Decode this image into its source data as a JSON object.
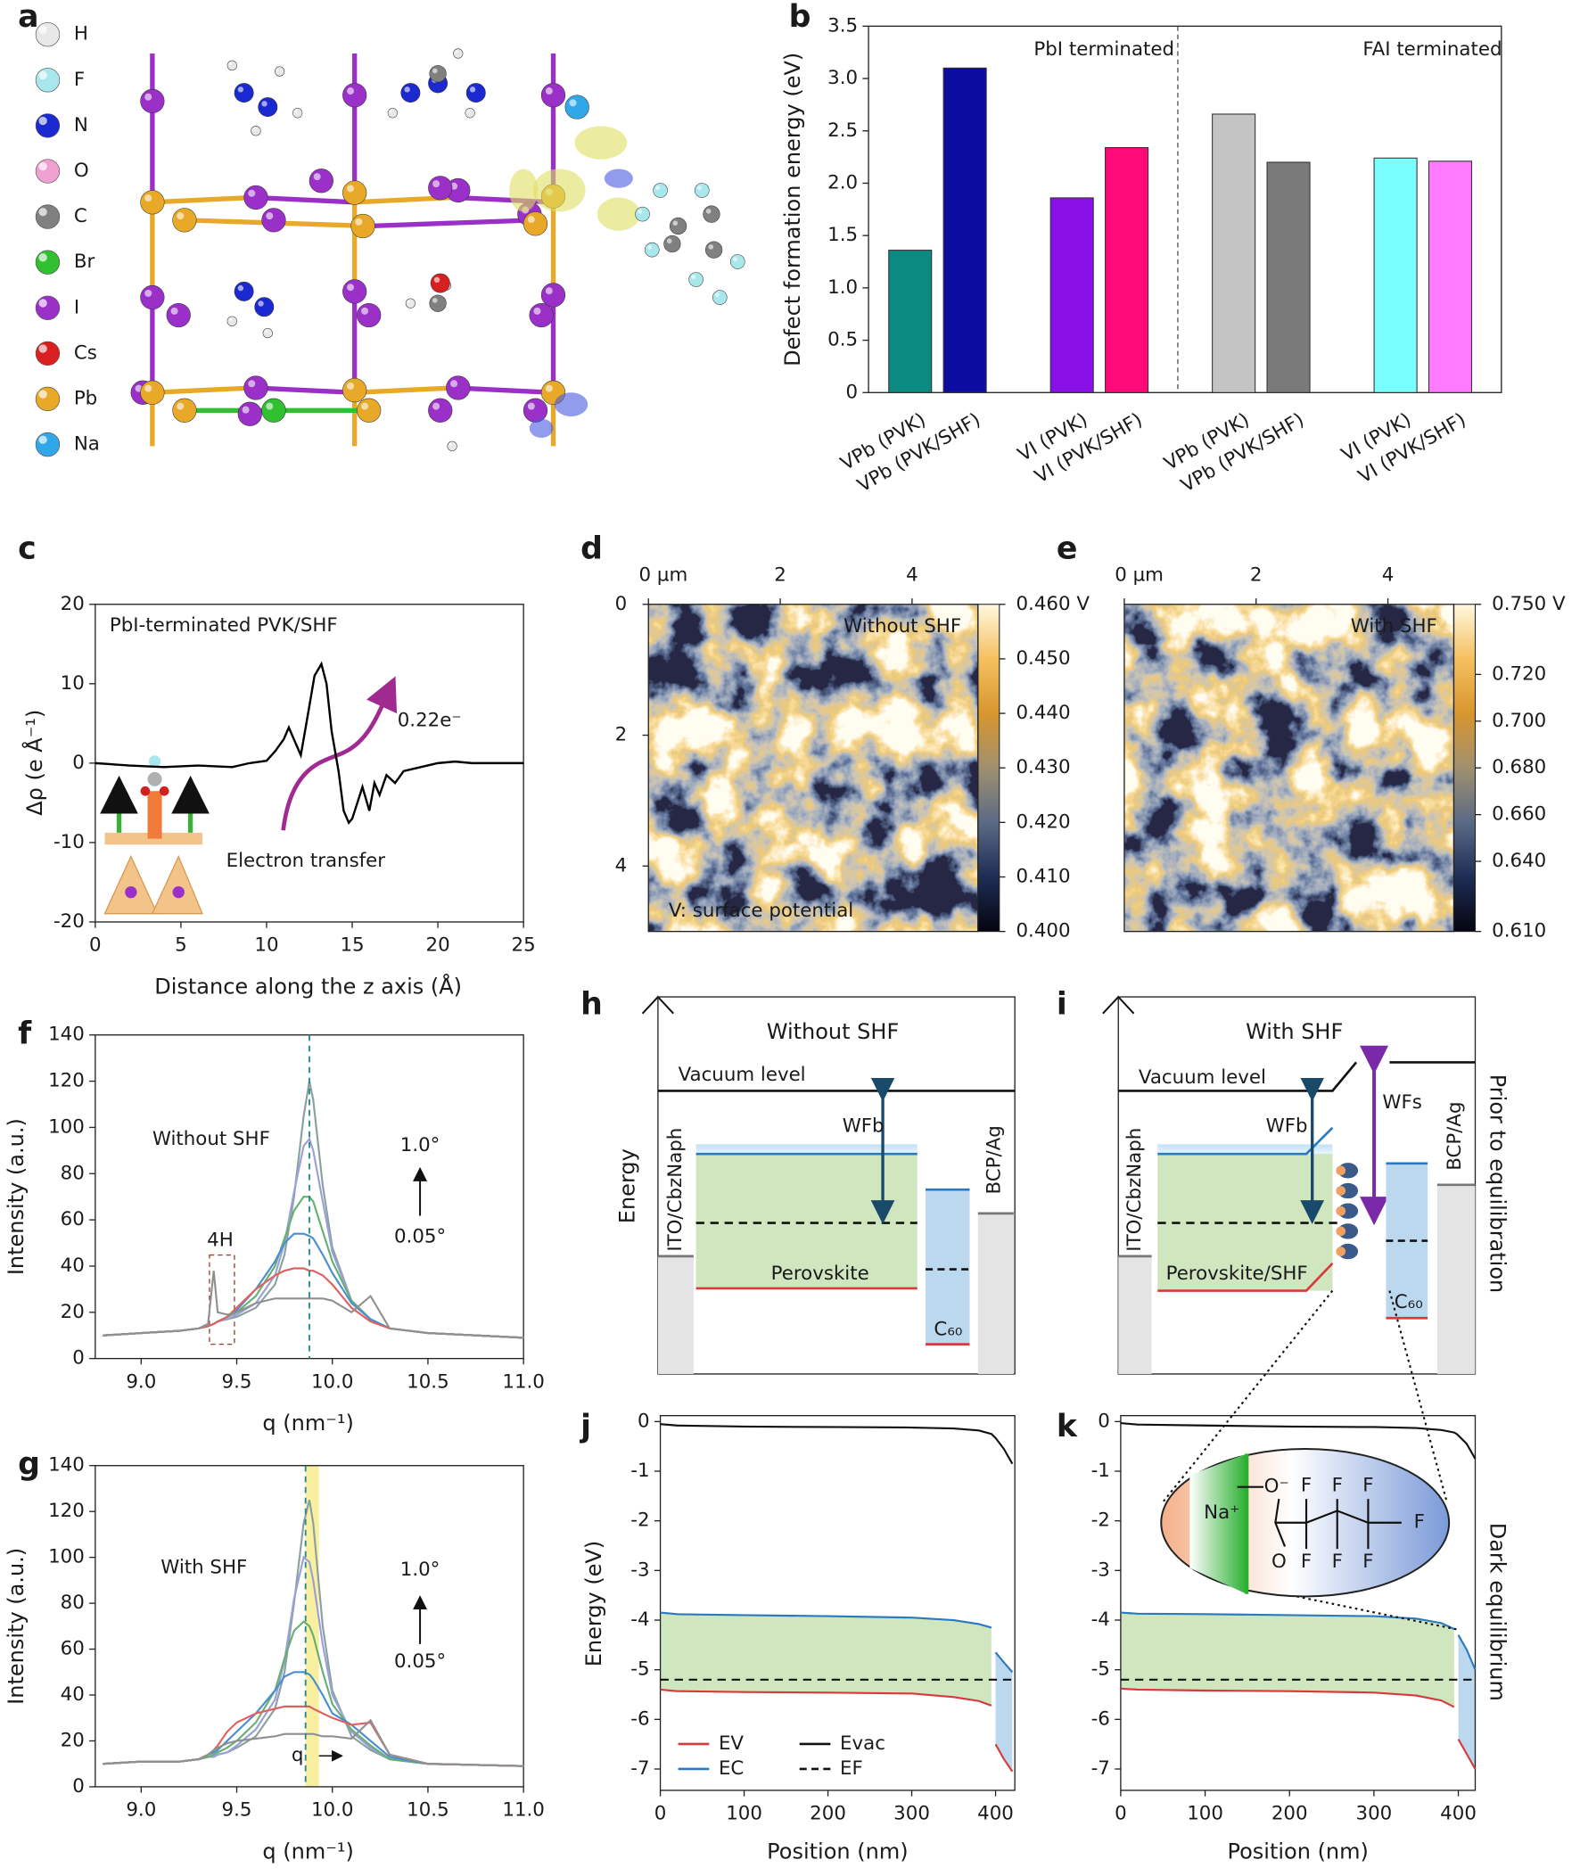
{
  "structure": {
    "label": "a",
    "legend": [
      {
        "label": "H",
        "color": "#e8e8e8"
      },
      {
        "label": "F",
        "color": "#a8e8ec"
      },
      {
        "label": "N",
        "color": "#1a2ad0"
      },
      {
        "label": "O",
        "color": "#f0a0d0"
      },
      {
        "label": "C",
        "color": "#808080"
      },
      {
        "label": "Br",
        "color": "#30c030"
      },
      {
        "label": "I",
        "color": "#9a30c8"
      },
      {
        "label": "Cs",
        "color": "#d82020"
      },
      {
        "label": "Pb",
        "color": "#e8a828"
      },
      {
        "label": "Na",
        "color": "#30a8e8"
      }
    ]
  },
  "chart_data": [
    {
      "type": "bar",
      "label": "b",
      "y_label": "Defect formation energy (eV)",
      "categories": [
        "VPb (PVK)",
        "VPb (PVK/SHF)",
        "VI (PVK)",
        "VI (PVK/SHF)",
        "VPb (PVK)",
        "VPb (PVK/SHF)",
        "VI (PVK)",
        "VI (PVK/SHF)"
      ],
      "values": [
        1.36,
        3.1,
        1.86,
        2.34,
        2.66,
        2.2,
        2.24,
        2.21
      ],
      "colors": [
        "#0a8a80",
        "#0c0ca0",
        "#8a10e8",
        "#ff0a78",
        "#c4c4c4",
        "#7a7a7a",
        "#7affff",
        "#ff7aff"
      ],
      "annotations": [
        "PbI terminated",
        "FAI terminated"
      ],
      "ylim": [
        0,
        3.5
      ],
      "yticks": [
        0,
        0.5,
        {
          "value": 1,
          "label": "1.0"
        },
        1.5,
        {
          "value": 2,
          "label": "2.0"
        },
        2.5,
        {
          "value": 3,
          "label": "3.0"
        },
        3.5
      ]
    },
    {
      "type": "line",
      "label": "c",
      "x_label": "Distance along the z axis (Å)",
      "y_label": "Δρ (e Å⁻¹)",
      "annotations": [
        "PbI-terminated PVK/SHF",
        "0.22e⁻",
        "Electron transfer"
      ],
      "x": [
        0,
        2,
        4,
        6,
        8,
        9,
        10,
        10.5,
        11,
        11.3,
        11.6,
        12,
        12.4,
        12.8,
        13.2,
        13.5,
        13.8,
        14.2,
        14.5,
        14.8,
        15,
        15.3,
        15.6,
        16,
        16.3,
        16.6,
        17,
        17.5,
        18,
        19,
        20,
        21,
        22,
        23,
        25
      ],
      "values": [
        0,
        -0.3,
        -0.5,
        -0.3,
        -0.5,
        0,
        0.3,
        1.5,
        3,
        4.5,
        3,
        1,
        6,
        11,
        12.5,
        10,
        4,
        -1,
        -6,
        -7.5,
        -7,
        -5,
        -3,
        -6,
        -2.5,
        -4,
        -1.5,
        -2.5,
        -1,
        -0.5,
        0,
        0.2,
        0,
        0,
        0
      ],
      "color": "#000000",
      "xlim": [
        0,
        25
      ],
      "xticks": [
        0,
        5,
        10,
        15,
        20,
        25
      ],
      "ylim": [
        -20,
        20
      ],
      "yticks": [
        -20,
        -10,
        0,
        10,
        20
      ]
    },
    {
      "type": "heatmap",
      "label": "d",
      "annotations": [
        "Without SHF",
        "V: surface potential"
      ],
      "xlim": [
        0,
        5
      ],
      "xticks": [
        {
          "value": 0,
          "label": "0 µm"
        },
        2,
        4
      ],
      "ylim": [
        0,
        5
      ],
      "yticks": [
        0,
        2,
        4
      ],
      "yaxis_inverted": true,
      "colormap": [
        "#05050f",
        "#1e2d55",
        "#5a6a85",
        "#a09070",
        "#d8962e",
        "#f5c060",
        "#fff8e0"
      ],
      "colorbar": {
        "lim": [
          0.4,
          0.46
        ],
        "ticks": [
          {
            "value": 0.46,
            "label": "0.460 V"
          },
          {
            "value": 0.45,
            "label": "0.450"
          },
          {
            "value": 0.44,
            "label": "0.440"
          },
          {
            "value": 0.43,
            "label": "0.430"
          },
          {
            "value": 0.42,
            "label": "0.420"
          },
          {
            "value": 0.41,
            "label": "0.410"
          },
          {
            "value": 0.4,
            "label": "0.400"
          }
        ]
      }
    },
    {
      "type": "heatmap",
      "label": "e",
      "annotations": [
        "With SHF"
      ],
      "xlim": [
        0,
        5
      ],
      "xticks": [
        {
          "value": 0,
          "label": "0 µm"
        },
        2,
        4
      ],
      "ylim": [
        0,
        5
      ],
      "yticks": [],
      "yaxis_inverted": true,
      "colormap": [
        "#05050f",
        "#1e2d55",
        "#5a6a85",
        "#a09070",
        "#d8962e",
        "#f5c060",
        "#fff8e0"
      ],
      "colorbar": {
        "lim": [
          0.61,
          0.75
        ],
        "ticks": [
          {
            "value": 0.75,
            "label": "0.750 V"
          },
          {
            "value": 0.72,
            "label": "0.720"
          },
          {
            "value": 0.7,
            "label": "0.700"
          },
          {
            "value": 0.68,
            "label": "0.680"
          },
          {
            "value": 0.66,
            "label": "0.660"
          },
          {
            "value": 0.64,
            "label": "0.640"
          },
          {
            "value": 0.61,
            "label": "0.610"
          }
        ]
      }
    },
    {
      "type": "line",
      "label": "f",
      "x_label": "q (nm⁻¹)",
      "y_label": "Intensity (a.u.)",
      "annotations": [
        "Without SHF",
        "1.0°",
        "0.05°",
        "4H"
      ],
      "vline": 9.88,
      "vline_color": "#2a8a8a",
      "x": [
        8.8,
        9.0,
        9.2,
        9.3,
        9.35,
        9.38,
        9.4,
        9.45,
        9.5,
        9.6,
        9.7,
        9.75,
        9.8,
        9.85,
        9.88,
        9.9,
        9.95,
        10.0,
        10.1,
        10.2,
        10.3,
        10.5,
        11.0
      ],
      "series": [
        {
          "color": "#8aa0a0",
          "values": [
            10,
            11,
            12,
            13,
            14,
            15,
            16,
            17,
            18,
            22,
            32,
            45,
            70,
            105,
            120,
            112,
            75,
            48,
            25,
            17,
            13,
            11,
            9
          ]
        },
        {
          "color": "#9aa0d8",
          "values": [
            10,
            11,
            12,
            13,
            14,
            15,
            16,
            17,
            19,
            24,
            36,
            50,
            72,
            92,
            95,
            90,
            68,
            46,
            25,
            17,
            13,
            11,
            9
          ]
        },
        {
          "color": "#66b070",
          "values": [
            10,
            11,
            12,
            13,
            14,
            15,
            16,
            18,
            20,
            27,
            40,
            52,
            64,
            70,
            70,
            68,
            55,
            42,
            25,
            17,
            13,
            11,
            9
          ]
        },
        {
          "color": "#4a8ed0",
          "values": [
            10,
            11,
            12,
            13,
            14,
            15,
            16,
            18,
            21,
            30,
            42,
            50,
            54,
            54,
            53,
            52,
            45,
            37,
            24,
            17,
            13,
            11,
            9
          ]
        },
        {
          "color": "#e06060",
          "values": [
            10,
            11,
            12,
            13,
            14,
            15,
            16,
            18,
            22,
            30,
            36,
            38,
            39,
            39,
            38,
            38,
            36,
            32,
            22,
            16,
            13,
            11,
            9
          ]
        },
        {
          "color": "#909090",
          "values": [
            10,
            11,
            12,
            13,
            15,
            38,
            20,
            19,
            20,
            24,
            26,
            26,
            26,
            26,
            26,
            26,
            26,
            25,
            20,
            27,
            13,
            11,
            9
          ]
        }
      ],
      "xlim": [
        8.76,
        11.0
      ],
      "xticks": [
        {
          "value": 9,
          "label": "9.0"
        },
        9.5,
        {
          "value": 10,
          "label": "10.0"
        },
        10.5,
        {
          "value": 11,
          "label": "11.0"
        }
      ],
      "ylim": [
        0,
        140
      ],
      "yticks": [
        0,
        20,
        40,
        60,
        80,
        100,
        120,
        140
      ]
    },
    {
      "type": "line",
      "label": "g",
      "x_label": "q (nm⁻¹)",
      "y_label": "Intensity (a.u.)",
      "annotations": [
        "With SHF",
        "1.0°",
        "0.05°",
        "q"
      ],
      "vline": 9.86,
      "vline_color": "#2a8a8a",
      "band": [
        9.86,
        9.93
      ],
      "band_color": "#f8f0a0",
      "x": [
        8.8,
        9.0,
        9.2,
        9.3,
        9.35,
        9.38,
        9.4,
        9.45,
        9.5,
        9.6,
        9.7,
        9.75,
        9.8,
        9.85,
        9.88,
        9.9,
        9.95,
        10.0,
        10.1,
        10.2,
        10.3,
        10.5,
        11.0
      ],
      "series": [
        {
          "color": "#8aa0a0",
          "values": [
            10,
            11,
            11,
            12,
            13,
            13,
            14,
            15,
            17,
            22,
            34,
            50,
            80,
            115,
            125,
            115,
            70,
            42,
            22,
            16,
            12,
            10,
            9
          ]
        },
        {
          "color": "#9aa0d8",
          "values": [
            10,
            11,
            11,
            12,
            13,
            13,
            14,
            15,
            18,
            25,
            38,
            55,
            82,
            100,
            98,
            90,
            62,
            40,
            24,
            17,
            12,
            10,
            9
          ]
        },
        {
          "color": "#66b070",
          "values": [
            10,
            11,
            11,
            12,
            13,
            14,
            15,
            17,
            20,
            28,
            42,
            56,
            68,
            72,
            70,
            66,
            50,
            36,
            25,
            18,
            12,
            10,
            9
          ]
        },
        {
          "color": "#4a8ed0",
          "values": [
            10,
            11,
            11,
            12,
            14,
            15,
            16,
            20,
            24,
            32,
            42,
            48,
            50,
            50,
            49,
            47,
            40,
            32,
            27,
            20,
            13,
            10,
            9
          ]
        },
        {
          "color": "#e06060",
          "values": [
            10,
            11,
            11,
            12,
            14,
            16,
            18,
            24,
            28,
            32,
            34,
            35,
            35,
            35,
            35,
            34,
            32,
            30,
            27,
            28,
            14,
            10,
            9
          ]
        },
        {
          "color": "#909090",
          "values": [
            10,
            11,
            11,
            12,
            14,
            16,
            17,
            19,
            20,
            21,
            22,
            23,
            23,
            23,
            23,
            23,
            22,
            22,
            21,
            29,
            14,
            10,
            9
          ]
        }
      ],
      "xlim": [
        8.76,
        11.0
      ],
      "xticks": [
        {
          "value": 9,
          "label": "9.0"
        },
        9.5,
        {
          "value": 10,
          "label": "10.0"
        },
        10.5,
        {
          "value": 11,
          "label": "11.0"
        }
      ],
      "ylim": [
        0,
        140
      ],
      "yticks": [
        0,
        20,
        40,
        60,
        80,
        100,
        120,
        140
      ]
    },
    {
      "type": "line",
      "label": "j",
      "x_label": "Position (nm)",
      "y_label": "Energy (eV)",
      "legend": true,
      "band_colors": [
        "#cfe6bf",
        "#bcd8ef"
      ],
      "x": [
        0,
        20,
        100,
        200,
        300,
        350,
        380,
        395,
        398,
        400,
        410,
        420
      ],
      "series": [
        {
          "name": "EV",
          "color": "#d83a3a",
          "values": [
            -5.4,
            -5.43,
            -5.45,
            -5.46,
            -5.48,
            -5.55,
            -5.63,
            -5.72,
            null,
            -6.5,
            -6.8,
            -7.05
          ]
        },
        {
          "name": "EC",
          "color": "#2a7ac0",
          "values": [
            -3.85,
            -3.88,
            -3.9,
            -3.92,
            -3.95,
            -4.0,
            -4.08,
            -4.15,
            null,
            -4.65,
            -4.85,
            -5.05
          ]
        },
        {
          "name": "Evac",
          "color": "#111111",
          "values": [
            -0.05,
            -0.08,
            -0.1,
            -0.11,
            -0.12,
            -0.14,
            -0.18,
            -0.25,
            -0.3,
            -0.33,
            -0.55,
            -0.85
          ]
        },
        {
          "name": "EF",
          "color": "#111111",
          "style": "dashed",
          "values": [
            -5.2,
            -5.2,
            -5.2,
            -5.2,
            -5.2,
            -5.2,
            -5.2,
            -5.2,
            -5.2,
            -5.2,
            -5.2,
            -5.2
          ]
        }
      ],
      "xlim": [
        0,
        423
      ],
      "xticks": [
        0,
        100,
        200,
        300,
        400
      ],
      "ylim": [
        -7.43,
        0.12
      ],
      "yticks": [
        0,
        -1,
        -2,
        -3,
        -4,
        -5,
        -6,
        -7
      ]
    },
    {
      "type": "line",
      "label": "k",
      "x_label": "Position (nm)",
      "legend": false,
      "side_label": "Dark equilibrium",
      "band_colors": [
        "#cfe6bf",
        "#bcd8ef"
      ],
      "x": [
        0,
        20,
        100,
        200,
        300,
        350,
        380,
        395,
        398,
        400,
        410,
        420
      ],
      "series": [
        {
          "color": "#d83a3a",
          "values": [
            -5.38,
            -5.4,
            -5.42,
            -5.43,
            -5.46,
            -5.52,
            -5.62,
            -5.75,
            null,
            -6.4,
            -6.7,
            -7.0
          ]
        },
        {
          "color": "#2a7ac0",
          "values": [
            -3.85,
            -3.87,
            -3.88,
            -3.9,
            -3.92,
            -3.97,
            -4.06,
            -4.18,
            null,
            -4.3,
            -4.6,
            -5.0
          ]
        },
        {
          "color": "#111111",
          "values": [
            -0.03,
            -0.06,
            -0.08,
            -0.1,
            -0.11,
            -0.13,
            -0.17,
            -0.22,
            -0.25,
            -0.28,
            -0.45,
            -0.75
          ]
        },
        {
          "color": "#111111",
          "style": "dashed",
          "values": [
            -5.2,
            -5.2,
            -5.2,
            -5.2,
            -5.2,
            -5.2,
            -5.2,
            -5.2,
            -5.2,
            -5.2,
            -5.2,
            -5.2
          ]
        }
      ],
      "xlim": [
        0,
        420
      ],
      "xticks": [
        0,
        100,
        200,
        300,
        400
      ],
      "ylim": [
        -7.43,
        0.12
      ],
      "yticks": [
        0,
        -1,
        -2,
        -3,
        -4,
        -5,
        -6,
        -7
      ]
    }
  ],
  "diagrams": {
    "h": {
      "label": "h",
      "title": "Without SHF",
      "axis_label": "Energy",
      "vacuum": "Vacuum level",
      "left": "ITO/CbzNaph",
      "layer": "Perovskite",
      "work_function": "WFb",
      "acceptor": "C₆₀",
      "right": "BCP/Ag"
    },
    "i": {
      "label": "i",
      "title": "With SHF",
      "vacuum": "Vacuum level",
      "left": "ITO/CbzNaph",
      "layer": "Perovskite/SHF",
      "work_function": "WFb",
      "surface_work_function": "WFs",
      "acceptor": "C₆₀",
      "right": "BCP/Ag",
      "side_label": "Prior to equilibration"
    }
  },
  "inset": {
    "labels": [
      "Na⁺",
      "O⁻",
      "O",
      "F",
      "F",
      "F",
      "F",
      "F",
      "F",
      "F"
    ]
  }
}
